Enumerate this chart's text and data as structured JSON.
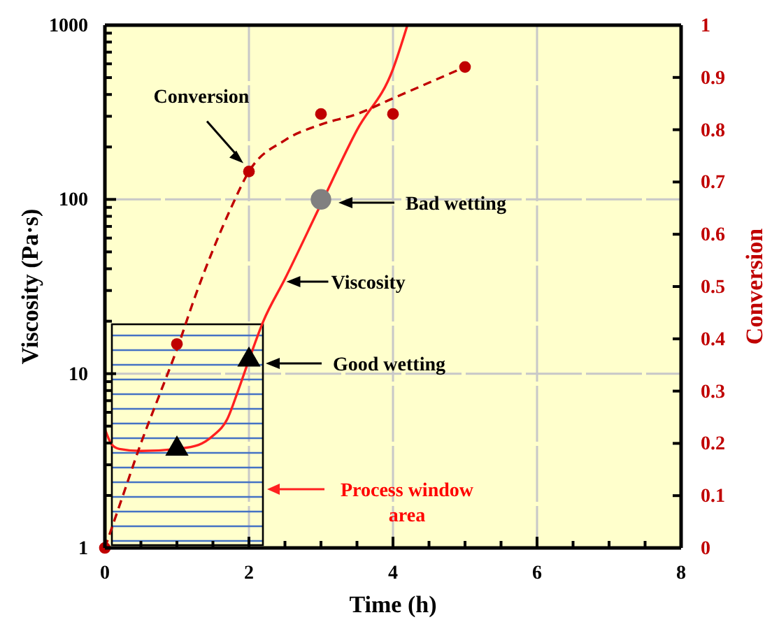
{
  "chart_data": {
    "type": "line",
    "xlabel": "Time (h)",
    "ylabel": "Viscosity (Pa·s)",
    "y2label": "Conversion",
    "xlim": [
      0,
      8
    ],
    "xticks": [
      0,
      {
        "value": 0.5,
        "label": null
      },
      {
        "value": 1,
        "label": null
      },
      {
        "value": 1.5,
        "label": null
      },
      2,
      {
        "value": 2.5,
        "label": null
      },
      {
        "value": 3,
        "label": null
      },
      {
        "value": 3.5,
        "label": null
      },
      4,
      {
        "value": 4.5,
        "label": null
      },
      {
        "value": 5,
        "label": null
      },
      {
        "value": 5.5,
        "label": null
      },
      6,
      {
        "value": 6.5,
        "label": null
      },
      {
        "value": 7,
        "label": null
      },
      {
        "value": 7.5,
        "label": null
      },
      8
    ],
    "ylim": [
      1,
      1000
    ],
    "yticks": [
      1,
      {
        "value": 2,
        "label": null
      },
      {
        "value": 3,
        "label": null
      },
      {
        "value": 4,
        "label": null
      },
      {
        "value": 5,
        "label": null
      },
      {
        "value": 6,
        "label": null
      },
      {
        "value": 7,
        "label": null
      },
      {
        "value": 8,
        "label": null
      },
      {
        "value": 9,
        "label": null
      },
      10,
      {
        "value": 20,
        "label": null
      },
      {
        "value": 30,
        "label": null
      },
      {
        "value": 40,
        "label": null
      },
      {
        "value": 50,
        "label": null
      },
      {
        "value": 60,
        "label": null
      },
      {
        "value": 70,
        "label": null
      },
      {
        "value": 80,
        "label": null
      },
      {
        "value": 90,
        "label": null
      },
      100,
      {
        "value": 200,
        "label": null
      },
      {
        "value": 300,
        "label": null
      },
      {
        "value": 400,
        "label": null
      },
      {
        "value": 500,
        "label": null
      },
      {
        "value": 600,
        "label": null
      },
      {
        "value": 700,
        "label": null
      },
      {
        "value": 800,
        "label": null
      },
      {
        "value": 900,
        "label": null
      },
      1000
    ],
    "y2lim": [
      0,
      1
    ],
    "y2ticks": [
      0,
      0.1,
      0.2,
      0.3,
      0.4,
      0.5,
      0.6,
      0.7,
      0.8,
      0.9,
      1
    ],
    "log": "y",
    "grid": true,
    "series": [
      {
        "name": "Viscosity",
        "color": "#ff2020",
        "line_style": "solid",
        "marker": "none",
        "x": [
          0,
          0.1,
          0.2,
          0.5,
          1,
          1.3,
          1.5,
          1.7,
          1.85,
          2,
          2.2,
          2.5,
          3,
          3.5,
          4,
          4.2
        ],
        "values": [
          4.8,
          3.9,
          3.7,
          3.6,
          3.7,
          3.9,
          4.4,
          5.5,
          8,
          12,
          20,
          35,
          94,
          250,
          560,
          1000
        ]
      },
      {
        "type": "line",
        "name": "Conversion",
        "axis": "y2",
        "color": "#c00000",
        "line_style": "dashed",
        "marker": "none",
        "x": [
          0,
          0.25,
          0.5,
          0.75,
          1,
          1.25,
          1.5,
          1.75,
          2,
          2.5,
          3,
          3.5,
          4,
          4.5,
          5
        ],
        "values": [
          0,
          0.1,
          0.2,
          0.29,
          0.38,
          0.48,
          0.57,
          0.65,
          0.72,
          0.78,
          0.81,
          0.83,
          0.86,
          0.89,
          0.92
        ]
      },
      {
        "type": "scatter",
        "axis": "y2",
        "color": "#c00000",
        "marker": "circle",
        "x": [
          0,
          1,
          2,
          3,
          4,
          5
        ],
        "values": [
          0,
          0.39,
          0.72,
          0.83,
          0.83,
          0.92
        ]
      },
      {
        "type": "scatter",
        "color": "#000000",
        "marker": "triangle",
        "x": [
          1,
          2
        ],
        "values": [
          3.7,
          12
        ]
      },
      {
        "type": "scatter",
        "color": "#808080",
        "marker": "circle",
        "x": [
          3
        ],
        "values": [
          100
        ]
      }
    ],
    "annotations": [
      "Good wetting",
      "Bad wetting",
      "Process window area"
    ]
  }
}
